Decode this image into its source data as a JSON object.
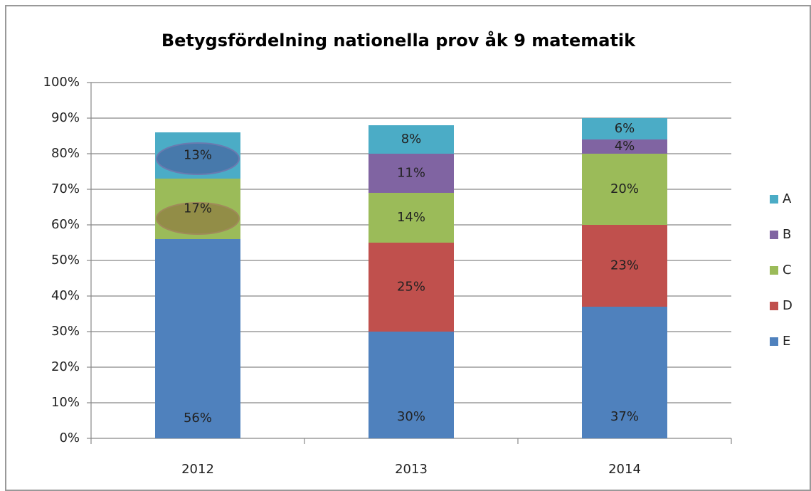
{
  "chart_data": {
    "type": "stacked_bar",
    "title": "Betygsfördelning nationella prov åk 9 matematik",
    "categories": [
      "2012",
      "2013",
      "2014"
    ],
    "series": [
      {
        "name": "E",
        "color": "#4f81bd",
        "values": [
          56,
          30,
          37
        ],
        "value_labels": [
          "56%",
          "30%",
          "37%"
        ]
      },
      {
        "name": "D",
        "color": "#c0504d",
        "values": [
          null,
          25,
          23
        ],
        "value_labels": [
          null,
          "25%",
          "23%"
        ]
      },
      {
        "name": "C",
        "color": "#9bbb59",
        "values": [
          17,
          14,
          20
        ],
        "value_labels": [
          "17%",
          "14%",
          "20%"
        ]
      },
      {
        "name": "B",
        "color": "#8064a2",
        "values": [
          null,
          11,
          4
        ],
        "value_labels": [
          null,
          "11%",
          "4%"
        ]
      },
      {
        "name": "A",
        "color": "#4bacc6",
        "values": [
          13,
          8,
          6
        ],
        "value_labels": [
          "13%",
          "8%",
          "6%"
        ]
      }
    ],
    "ylim": [
      0,
      100
    ],
    "yticks": [
      {
        "value": 0,
        "label": "0%"
      },
      {
        "value": 10,
        "label": "10%"
      },
      {
        "value": 20,
        "label": "20%"
      },
      {
        "value": 30,
        "label": "30%"
      },
      {
        "value": 40,
        "label": "40%"
      },
      {
        "value": 50,
        "label": "50%"
      },
      {
        "value": 60,
        "label": "60%"
      },
      {
        "value": 70,
        "label": "70%"
      },
      {
        "value": 80,
        "label": "80%"
      },
      {
        "value": 90,
        "label": "90%"
      },
      {
        "value": 100,
        "label": "100%"
      }
    ],
    "grid": true,
    "legend": "right"
  }
}
